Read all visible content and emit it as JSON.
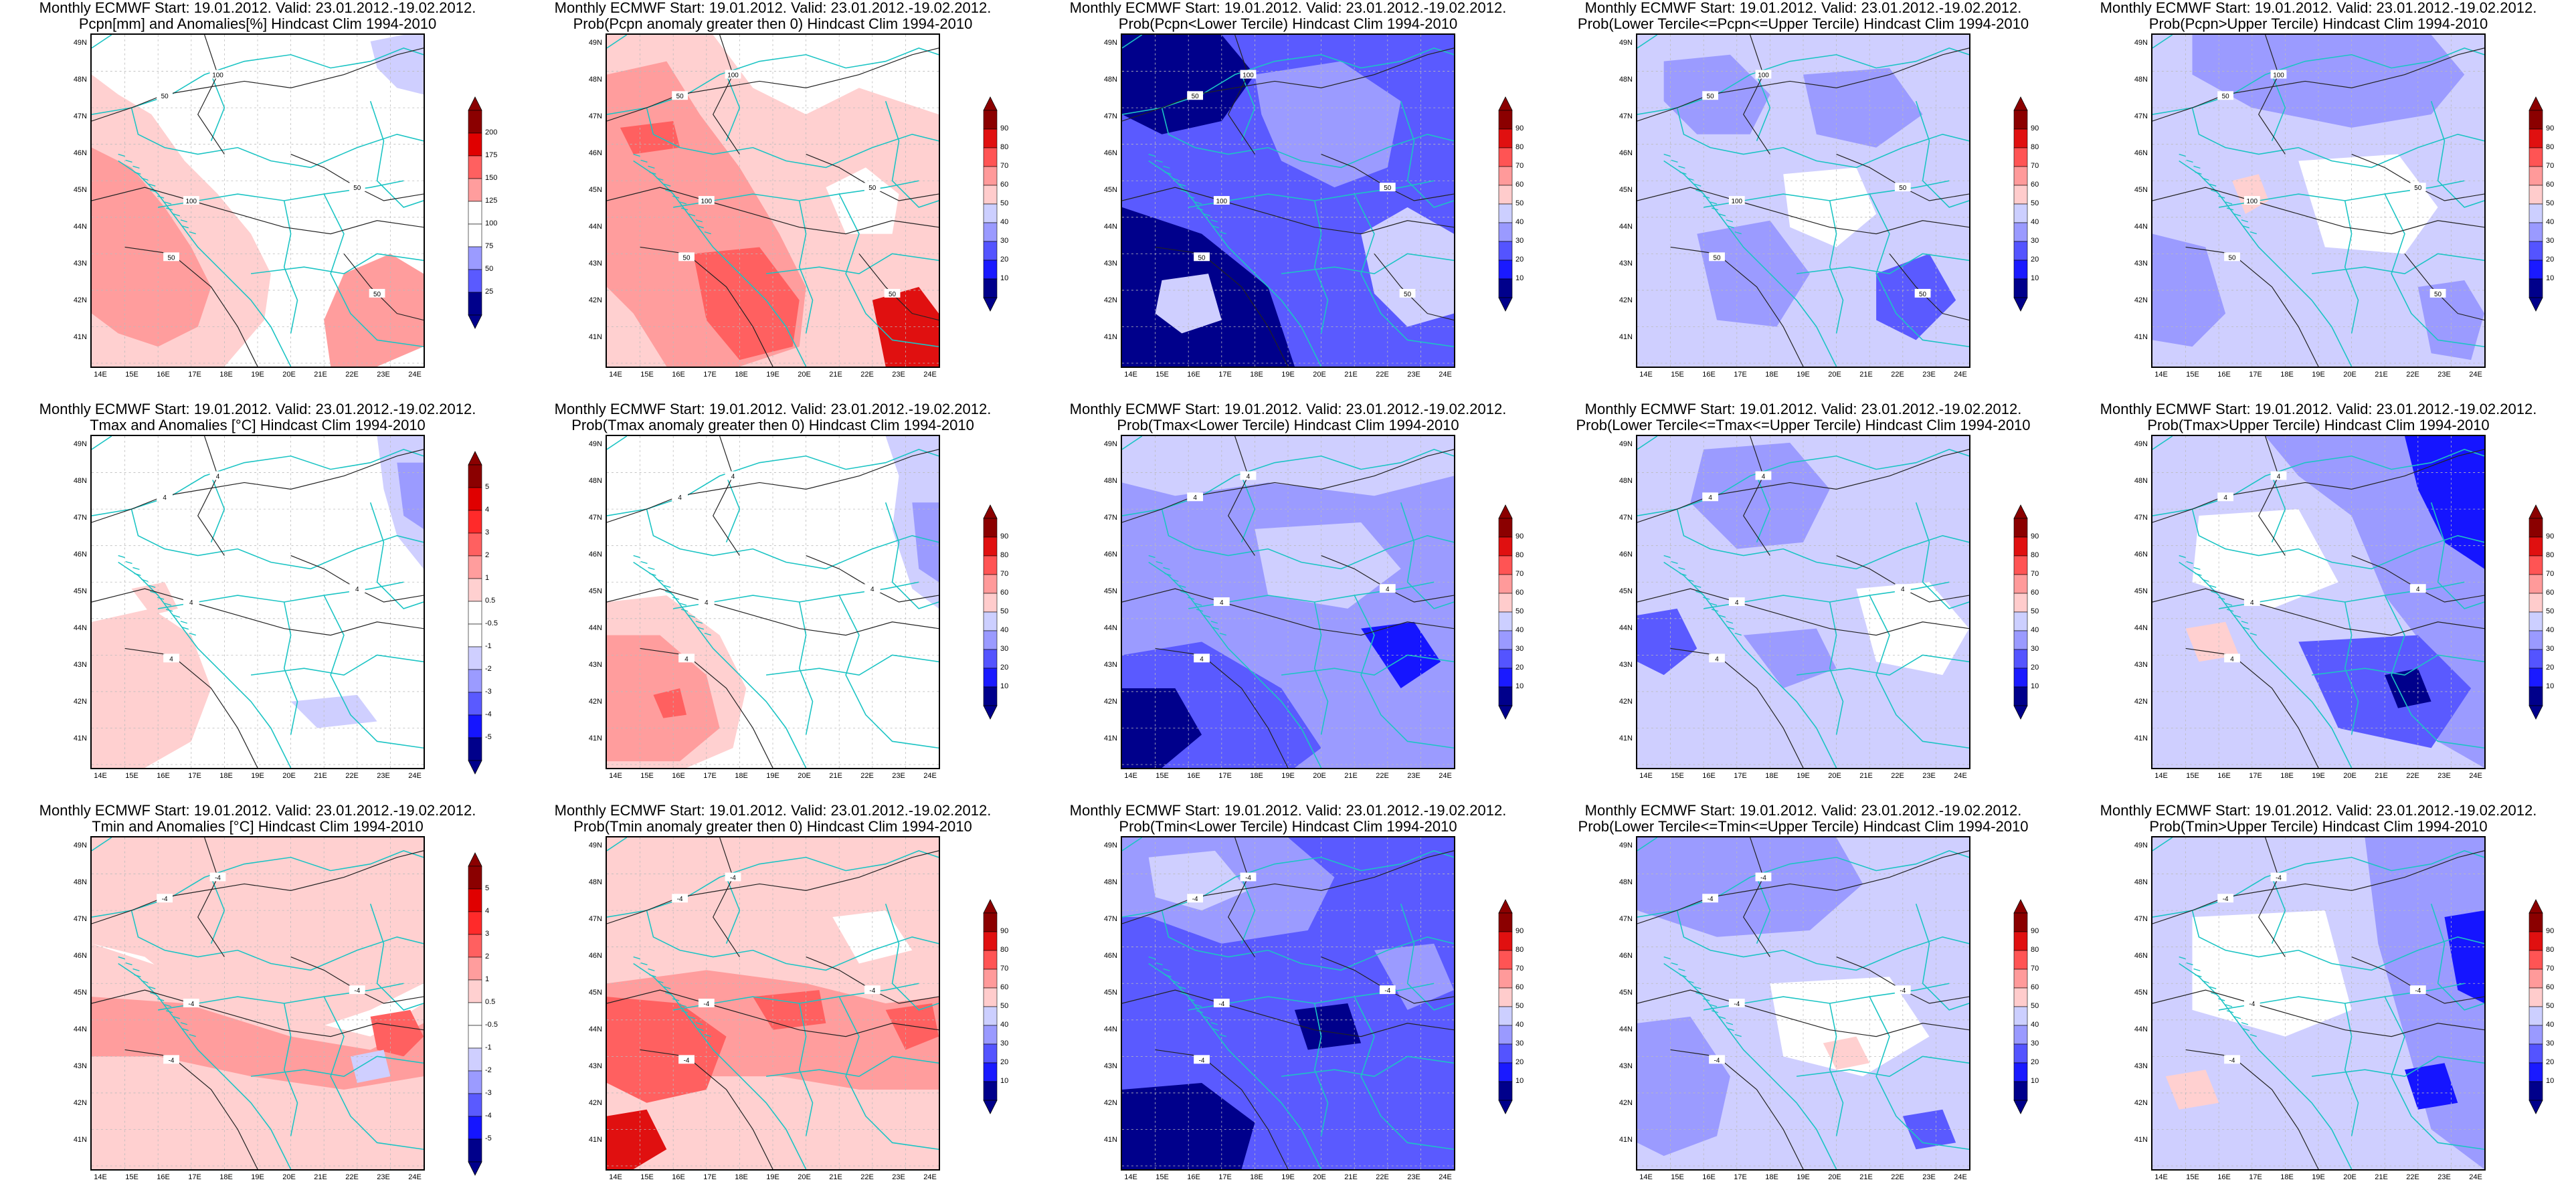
{
  "colors": {
    "anomaly_scale": [
      "#00008b",
      "#1515ff",
      "#5a5aff",
      "#9b9bff",
      "#cfcfff",
      "#ffffff",
      "#ffffff",
      "#ffd0d0",
      "#ff9d9d",
      "#ff6060",
      "#ff2a2a",
      "#e00000",
      "#8b0000"
    ],
    "prob_scale": [
      "#00008b",
      "#1a1aff",
      "#5454ff",
      "#9a9aff",
      "#cccfff",
      "#ffffff",
      "#ffcccc",
      "#ff9a9a",
      "#ff5454",
      "#e01010",
      "#8b0000"
    ],
    "coast_border": "#1cc4c4",
    "contour": "#222222",
    "grid": "#bbbbbb"
  },
  "map_axes": {
    "lat_labels": [
      "49N",
      "48N",
      "47N",
      "46N",
      "45N",
      "44N",
      "43N",
      "42N",
      "41N"
    ],
    "lon_labels": [
      "14E",
      "15E",
      "16E",
      "17E",
      "18E",
      "19E",
      "20E",
      "21E",
      "22E",
      "23E",
      "24E"
    ]
  },
  "colorbars": {
    "pcpn_anomaly": [
      "200",
      "175",
      "150",
      "125",
      "100",
      "75",
      "50",
      "25"
    ],
    "temp_anomaly": [
      "5",
      "4",
      "3",
      "2",
      "1",
      "0.5",
      "-0.5",
      "-1",
      "-2",
      "-3",
      "-4",
      "-5"
    ],
    "probability": [
      "90",
      "80",
      "70",
      "60",
      "50",
      "40",
      "30",
      "20",
      "10"
    ]
  },
  "panels": [
    {
      "line1": "Monthly ECMWF Start: 19.01.2012. Valid: 23.01.2012.-19.02.2012.",
      "line2": "Pcpn[mm] and Anomalies[%] Hindcast Clim 1994-2010",
      "scale": "pcpn_anomaly",
      "fill": "pcpn_anom",
      "contours": [
        "50",
        "100",
        "50",
        "50",
        "100",
        "50"
      ]
    },
    {
      "line1": "Monthly ECMWF Start: 19.01.2012. Valid: 23.01.2012.-19.02.2012.",
      "line2": "Prob(Pcpn anomaly greater then 0) Hindcast Clim 1994-2010",
      "scale": "probability",
      "fill": "warm_prob_pcpn",
      "contours": [
        "50",
        "100",
        "50",
        "50",
        "100",
        "50"
      ]
    },
    {
      "line1": "Monthly ECMWF Start: 19.01.2012. Valid: 23.01.2012.-19.02.2012.",
      "line2": "Prob(Pcpn<Lower Tercile) Hindcast Clim 1994-2010",
      "scale": "probability",
      "fill": "cold_deep",
      "contours": [
        "50",
        "100",
        "50",
        "50",
        "100",
        "50"
      ]
    },
    {
      "line1": "Monthly ECMWF Start: 19.01.2012. Valid: 23.01.2012.-19.02.2012.",
      "line2": "Prob(Lower Tercile<=Pcpn<=Upper Tercile) Hindcast Clim 1994-2010",
      "scale": "probability",
      "fill": "cold_light",
      "contours": [
        "50",
        "100",
        "50",
        "50",
        "100",
        "50"
      ]
    },
    {
      "line1": "Monthly ECMWF Start: 19.01.2012. Valid: 23.01.2012.-19.02.2012.",
      "line2": "Prob(Pcpn>Upper Tercile) Hindcast Clim 1994-2010",
      "scale": "probability",
      "fill": "cold_mid",
      "contours": [
        "50",
        "100",
        "50",
        "50",
        "100",
        "50"
      ]
    },
    {
      "line1": "Monthly ECMWF Start: 19.01.2012. Valid: 23.01.2012.-19.02.2012.",
      "line2": "Tmax and Anomalies [°C] Hindcast Clim 1994-2010",
      "scale": "temp_anomaly",
      "fill": "tmax_anom",
      "contours": [
        "4",
        "4",
        "4",
        "4",
        "4"
      ]
    },
    {
      "line1": "Monthly ECMWF Start: 19.01.2012. Valid: 23.01.2012.-19.02.2012.",
      "line2": "Prob(Tmax anomaly greater then 0) Hindcast Clim 1994-2010",
      "scale": "probability",
      "fill": "tmax_prob",
      "contours": [
        "4",
        "4",
        "4",
        "4",
        "4"
      ]
    },
    {
      "line1": "Monthly ECMWF Start: 19.01.2012. Valid: 23.01.2012.-19.02.2012.",
      "line2": "Prob(Tmax<Lower Tercile) Hindcast Clim 1994-2010",
      "scale": "probability",
      "fill": "cold_deep2",
      "contours": [
        "4",
        "4",
        "4",
        "4",
        "4"
      ]
    },
    {
      "line1": "Monthly ECMWF Start: 19.01.2012. Valid: 23.01.2012.-19.02.2012.",
      "line2": "Prob(Lower Tercile<=Tmax<=Upper Tercile) Hindcast Clim 1994-2010",
      "scale": "probability",
      "fill": "cold_mid2",
      "contours": [
        "4",
        "4",
        "4",
        "4",
        "4"
      ]
    },
    {
      "line1": "Monthly ECMWF Start: 19.01.2012. Valid: 23.01.2012.-19.02.2012.",
      "line2": "Prob(Tmax>Upper Tercile) Hindcast Clim 1994-2010",
      "scale": "probability",
      "fill": "cold_upper",
      "contours": [
        "4",
        "4",
        "4",
        "4",
        "4"
      ]
    },
    {
      "line1": "Monthly ECMWF Start: 19.01.2012. Valid: 23.01.2012.-19.02.2012.",
      "line2": "Tmin and Anomalies [°C] Hindcast Clim 1994-2010",
      "scale": "temp_anomaly",
      "fill": "tmin_anom",
      "contours": [
        "-4",
        "-4",
        "-4",
        "-4",
        "-4"
      ]
    },
    {
      "line1": "Monthly ECMWF Start: 19.01.2012. Valid: 23.01.2012.-19.02.2012.",
      "line2": "Prob(Tmin anomaly greater then 0) Hindcast Clim 1994-2010",
      "scale": "probability",
      "fill": "tmin_prob",
      "contours": [
        "-4",
        "-4",
        "-4",
        "-4",
        "-4"
      ]
    },
    {
      "line1": "Monthly ECMWF Start: 19.01.2012. Valid: 23.01.2012.-19.02.2012.",
      "line2": "Prob(Tmin<Lower Tercile) Hindcast Clim 1994-2010",
      "scale": "probability",
      "fill": "cold_deep3",
      "contours": [
        "-4",
        "-4",
        "-4",
        "-4",
        "-4"
      ]
    },
    {
      "line1": "Monthly ECMWF Start: 19.01.2012. Valid: 23.01.2012.-19.02.2012.",
      "line2": "Prob(Lower Tercile<=Tmin<=Upper Tercile) Hindcast Clim 1994-2010",
      "scale": "probability",
      "fill": "cold_mid3",
      "contours": [
        "-4",
        "-4",
        "-4",
        "-4",
        "-4"
      ]
    },
    {
      "line1": "Monthly ECMWF Start: 19.01.2012. Valid: 23.01.2012.-19.02.2012.",
      "line2": "Prob(Tmin>Upper Tercile) Hindcast Clim 1994-2010",
      "scale": "probability",
      "fill": "cold_upper3",
      "contours": [
        "-4",
        "-4",
        "-4",
        "-4",
        "-4"
      ]
    }
  ]
}
